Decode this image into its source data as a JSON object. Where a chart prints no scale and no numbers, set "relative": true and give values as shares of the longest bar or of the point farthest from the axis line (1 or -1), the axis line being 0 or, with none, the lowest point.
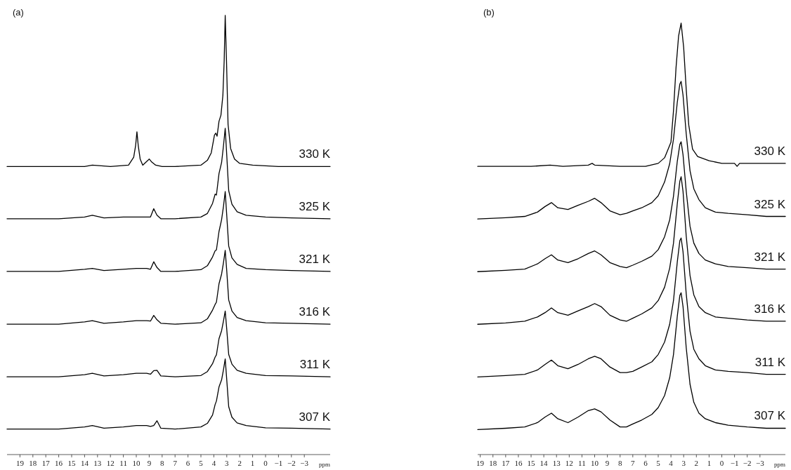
{
  "chart_data": [
    {
      "type": "line",
      "title": "(a)",
      "relative": true,
      "xlim": [
        20,
        -5
      ],
      "xlabel": "ppm",
      "xticks": [
        19,
        18,
        17,
        16,
        15,
        14,
        13,
        12,
        11,
        10,
        9,
        8,
        7,
        6,
        5,
        4,
        3,
        2,
        1,
        0,
        {
          "value": -1,
          "label": "−1"
        },
        {
          "value": -2,
          "label": "−2"
        },
        {
          "value": -3,
          "label": "−3"
        }
      ],
      "x": [
        20,
        16,
        14,
        13.4,
        12.5,
        11,
        10,
        9.2,
        8.9,
        8.65,
        8.4,
        8.1,
        7,
        5,
        4.5,
        4.1,
        3.9,
        3.8,
        3.6,
        3.4,
        3.25,
        3.12,
        3.0,
        2.85,
        2.6,
        2.2,
        1.5,
        0,
        -2,
        -5
      ],
      "series": [
        {
          "name": "330 K",
          "color": "#000000",
          "x": [
            20,
            14,
            13.4,
            12,
            10.6,
            10.2,
            10.05,
            9.95,
            9.85,
            9.7,
            9.5,
            9.1,
            9.0,
            8.8,
            8.5,
            8,
            7,
            5,
            4.5,
            4.2,
            3.95,
            3.85,
            3.75,
            3.6,
            3.45,
            3.3,
            3.2,
            3.12,
            3.02,
            2.9,
            2.7,
            2.4,
            2,
            1,
            -1,
            -5
          ],
          "values": [
            0.656,
            0.656,
            0.659,
            0.656,
            0.659,
            0.677,
            0.704,
            0.735,
            0.704,
            0.673,
            0.659,
            0.67,
            0.673,
            0.666,
            0.659,
            0.656,
            0.656,
            0.659,
            0.67,
            0.687,
            0.728,
            0.732,
            0.725,
            0.759,
            0.773,
            0.818,
            0.897,
            1,
            0.897,
            0.752,
            0.697,
            0.673,
            0.663,
            0.659,
            0.656,
            0.656
          ]
        },
        {
          "name": "325 K",
          "color": "#000000",
          "values": [
            0.537,
            0.537,
            0.541,
            0.545,
            0.539,
            0.541,
            0.541,
            0.541,
            0.541,
            0.56,
            0.545,
            0.537,
            0.537,
            0.541,
            0.549,
            0.572,
            0.593,
            0.591,
            0.64,
            0.665,
            0.704,
            0.743,
            0.681,
            0.601,
            0.57,
            0.553,
            0.545,
            0.541,
            0.539,
            0.537
          ]
        },
        {
          "name": "321 K",
          "color": "#000000",
          "values": [
            0.417,
            0.417,
            0.422,
            0.424,
            0.419,
            0.422,
            0.424,
            0.424,
            0.422,
            0.439,
            0.426,
            0.417,
            0.417,
            0.421,
            0.43,
            0.45,
            0.464,
            0.466,
            0.508,
            0.535,
            0.566,
            0.599,
            0.544,
            0.475,
            0.448,
            0.433,
            0.424,
            0.421,
            0.419,
            0.417
          ]
        },
        {
          "name": "316 K",
          "color": "#000000",
          "values": [
            0.297,
            0.297,
            0.302,
            0.305,
            0.299,
            0.302,
            0.305,
            0.305,
            0.304,
            0.317,
            0.307,
            0.299,
            0.297,
            0.3,
            0.309,
            0.329,
            0.342,
            0.347,
            0.389,
            0.411,
            0.438,
            0.465,
            0.418,
            0.352,
            0.327,
            0.312,
            0.305,
            0.3,
            0.299,
            0.297
          ]
        },
        {
          "name": "311 K",
          "color": "#000000",
          "values": [
            0.177,
            0.177,
            0.182,
            0.185,
            0.179,
            0.182,
            0.185,
            0.185,
            0.183,
            0.191,
            0.192,
            0.179,
            0.177,
            0.18,
            0.189,
            0.207,
            0.222,
            0.227,
            0.264,
            0.282,
            0.305,
            0.327,
            0.285,
            0.228,
            0.206,
            0.192,
            0.185,
            0.18,
            0.179,
            0.177
          ]
        },
        {
          "name": "307 K",
          "color": "#000000",
          "values": [
            0.058,
            0.058,
            0.063,
            0.066,
            0.06,
            0.063,
            0.066,
            0.066,
            0.064,
            0.066,
            0.077,
            0.06,
            0.058,
            0.063,
            0.071,
            0.09,
            0.114,
            0.122,
            0.154,
            0.17,
            0.194,
            0.218,
            0.17,
            0.109,
            0.085,
            0.072,
            0.066,
            0.061,
            0.06,
            0.058
          ]
        }
      ]
    },
    {
      "type": "line",
      "title": "(b)",
      "relative": true,
      "xlim": [
        19.2,
        -5
      ],
      "xlabel": "ppm",
      "xticks": [
        19,
        18,
        17,
        16,
        15,
        14,
        13,
        12,
        11,
        10,
        9,
        8,
        7,
        6,
        5,
        4,
        3,
        2,
        1,
        0,
        {
          "value": -1,
          "label": "−1"
        },
        {
          "value": -2,
          "label": "−2"
        },
        {
          "value": -3,
          "label": "−3"
        }
      ],
      "x": [
        19.2,
        17,
        15.5,
        14.5,
        13.9,
        13.4,
        12.9,
        12.1,
        11.3,
        10.5,
        10,
        9.5,
        8.8,
        8,
        7.5,
        7,
        6.3,
        5.5,
        5,
        4.5,
        4.1,
        3.8,
        3.5,
        3.3,
        3.2,
        3.05,
        2.8,
        2.5,
        2.2,
        1.8,
        1.3,
        0.5,
        -0.5,
        -2,
        -3.5,
        -5
      ],
      "series": [
        {
          "name": "330 K",
          "color": "#000000",
          "x": [
            19.2,
            16,
            15,
            13.5,
            12.5,
            10.5,
            10.2,
            10,
            8,
            7,
            6,
            5,
            4.5,
            4,
            3.8,
            3.6,
            3.4,
            3.2,
            3,
            2.8,
            2.6,
            2.3,
            1.9,
            1,
            0,
            -1,
            -1.2,
            -1.4,
            -3,
            -5
          ],
          "values": [
            0.668,
            0.668,
            0.668,
            0.671,
            0.668,
            0.671,
            0.675,
            0.671,
            0.668,
            0.668,
            0.668,
            0.675,
            0.688,
            0.724,
            0.797,
            0.897,
            0.97,
            1,
            0.944,
            0.847,
            0.764,
            0.708,
            0.691,
            0.681,
            0.675,
            0.675,
            0.668,
            0.675,
            0.675,
            0.675
          ]
        },
        {
          "name": "325 K",
          "color": "#000000",
          "values": [
            0.546,
            0.549,
            0.552,
            0.562,
            0.575,
            0.584,
            0.572,
            0.568,
            0.578,
            0.587,
            0.594,
            0.584,
            0.565,
            0.556,
            0.559,
            0.565,
            0.572,
            0.584,
            0.6,
            0.632,
            0.674,
            0.731,
            0.817,
            0.859,
            0.865,
            0.833,
            0.744,
            0.658,
            0.616,
            0.591,
            0.572,
            0.562,
            0.559,
            0.556,
            0.552,
            0.552
          ]
        },
        {
          "name": "321 K",
          "color": "#000000",
          "values": [
            0.424,
            0.427,
            0.43,
            0.442,
            0.454,
            0.463,
            0.451,
            0.445,
            0.454,
            0.466,
            0.472,
            0.463,
            0.445,
            0.436,
            0.433,
            0.439,
            0.448,
            0.46,
            0.475,
            0.505,
            0.544,
            0.599,
            0.68,
            0.719,
            0.725,
            0.695,
            0.611,
            0.529,
            0.49,
            0.466,
            0.451,
            0.442,
            0.436,
            0.433,
            0.43,
            0.43
          ]
        },
        {
          "name": "316 K",
          "color": "#000000",
          "values": [
            0.302,
            0.305,
            0.309,
            0.319,
            0.329,
            0.34,
            0.329,
            0.323,
            0.333,
            0.343,
            0.35,
            0.343,
            0.323,
            0.312,
            0.309,
            0.316,
            0.326,
            0.34,
            0.357,
            0.388,
            0.432,
            0.49,
            0.582,
            0.634,
            0.644,
            0.61,
            0.507,
            0.415,
            0.37,
            0.343,
            0.329,
            0.319,
            0.316,
            0.312,
            0.309,
            0.309
          ]
        },
        {
          "name": "311 K",
          "color": "#000000",
          "values": [
            0.18,
            0.183,
            0.186,
            0.196,
            0.209,
            0.219,
            0.206,
            0.199,
            0.209,
            0.222,
            0.228,
            0.222,
            0.203,
            0.19,
            0.19,
            0.193,
            0.203,
            0.215,
            0.232,
            0.261,
            0.302,
            0.357,
            0.447,
            0.496,
            0.502,
            0.47,
            0.373,
            0.286,
            0.244,
            0.222,
            0.206,
            0.196,
            0.193,
            0.19,
            0.186,
            0.186
          ]
        },
        {
          "name": "307 K",
          "color": "#000000",
          "values": [
            0.058,
            0.061,
            0.064,
            0.074,
            0.087,
            0.096,
            0.083,
            0.074,
            0.087,
            0.102,
            0.106,
            0.099,
            0.08,
            0.064,
            0.064,
            0.071,
            0.08,
            0.093,
            0.109,
            0.137,
            0.178,
            0.232,
            0.321,
            0.369,
            0.375,
            0.343,
            0.248,
            0.163,
            0.121,
            0.096,
            0.083,
            0.074,
            0.068,
            0.064,
            0.061,
            0.061
          ]
        }
      ]
    }
  ]
}
